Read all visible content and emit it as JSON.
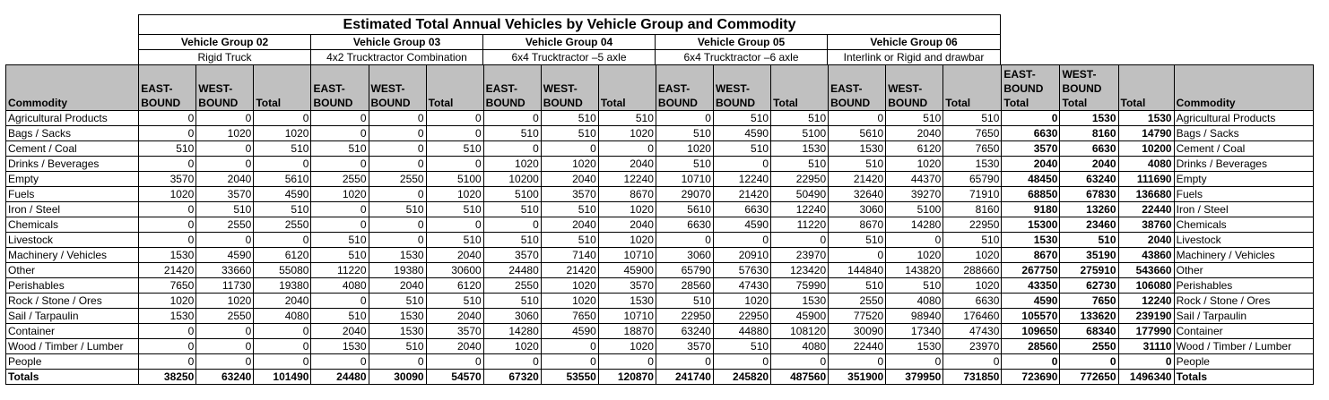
{
  "title": "Estimated Total Annual Vehicles by Vehicle Group and Commodity",
  "groups": [
    {
      "name": "Vehicle Group 02",
      "desc": "Rigid Truck"
    },
    {
      "name": "Vehicle Group 03",
      "desc": "4x2 Trucktractor Combination"
    },
    {
      "name": "Vehicle Group 04",
      "desc": "6x4 Trucktractor –5 axle"
    },
    {
      "name": "Vehicle Group 05",
      "desc": "6x4 Trucktractor –6 axle"
    },
    {
      "name": "Vehicle Group 06",
      "desc": "Interlink or Rigid and drawbar"
    }
  ],
  "headers": {
    "commodity": "Commodity",
    "east": "EAST-BOUND",
    "west": "WEST-BOUND",
    "total": "Total",
    "east_total": "EAST-BOUND Total",
    "west_total": "WEST-BOUND Total",
    "grand_total": "Total",
    "commodity_right": "Commodity"
  },
  "rows": [
    {
      "name": "Agricultural Products",
      "v": [
        0,
        0,
        0,
        0,
        0,
        0,
        0,
        510,
        510,
        0,
        510,
        510,
        0,
        510,
        510,
        0,
        1530,
        1530
      ]
    },
    {
      "name": "Bags / Sacks",
      "v": [
        0,
        1020,
        1020,
        0,
        0,
        0,
        510,
        510,
        1020,
        510,
        4590,
        5100,
        5610,
        2040,
        7650,
        6630,
        8160,
        14790
      ]
    },
    {
      "name": "Cement / Coal",
      "v": [
        510,
        0,
        510,
        510,
        0,
        510,
        0,
        0,
        0,
        1020,
        510,
        1530,
        1530,
        6120,
        7650,
        3570,
        6630,
        10200
      ]
    },
    {
      "name": "Drinks / Beverages",
      "v": [
        0,
        0,
        0,
        0,
        0,
        0,
        1020,
        1020,
        2040,
        510,
        0,
        510,
        510,
        1020,
        1530,
        2040,
        2040,
        4080
      ]
    },
    {
      "name": "Empty",
      "v": [
        3570,
        2040,
        5610,
        2550,
        2550,
        5100,
        10200,
        2040,
        12240,
        10710,
        12240,
        22950,
        21420,
        44370,
        65790,
        48450,
        63240,
        111690
      ]
    },
    {
      "name": "Fuels",
      "v": [
        1020,
        3570,
        4590,
        1020,
        0,
        1020,
        5100,
        3570,
        8670,
        29070,
        21420,
        50490,
        32640,
        39270,
        71910,
        68850,
        67830,
        136680
      ]
    },
    {
      "name": "Iron / Steel",
      "v": [
        0,
        510,
        510,
        0,
        510,
        510,
        510,
        510,
        1020,
        5610,
        6630,
        12240,
        3060,
        5100,
        8160,
        9180,
        13260,
        22440
      ]
    },
    {
      "name": "Chemicals",
      "v": [
        0,
        2550,
        2550,
        0,
        0,
        0,
        0,
        2040,
        2040,
        6630,
        4590,
        11220,
        8670,
        14280,
        22950,
        15300,
        23460,
        38760
      ]
    },
    {
      "name": "Livestock",
      "v": [
        0,
        0,
        0,
        510,
        0,
        510,
        510,
        510,
        1020,
        0,
        0,
        0,
        510,
        0,
        510,
        1530,
        510,
        2040
      ]
    },
    {
      "name": "Machinery / Vehicles",
      "v": [
        1530,
        4590,
        6120,
        510,
        1530,
        2040,
        3570,
        7140,
        10710,
        3060,
        20910,
        23970,
        0,
        1020,
        1020,
        8670,
        35190,
        43860
      ]
    },
    {
      "name": "Other",
      "v": [
        21420,
        33660,
        55080,
        11220,
        19380,
        30600,
        24480,
        21420,
        45900,
        65790,
        57630,
        123420,
        144840,
        143820,
        288660,
        267750,
        275910,
        543660
      ]
    },
    {
      "name": "Perishables",
      "v": [
        7650,
        11730,
        19380,
        4080,
        2040,
        6120,
        2550,
        1020,
        3570,
        28560,
        47430,
        75990,
        510,
        510,
        1020,
        43350,
        62730,
        106080
      ]
    },
    {
      "name": "Rock / Stone / Ores",
      "v": [
        1020,
        1020,
        2040,
        0,
        510,
        510,
        510,
        1020,
        1530,
        510,
        1020,
        1530,
        2550,
        4080,
        6630,
        4590,
        7650,
        12240
      ]
    },
    {
      "name": "Sail / Tarpaulin",
      "v": [
        1530,
        2550,
        4080,
        510,
        1530,
        2040,
        3060,
        7650,
        10710,
        22950,
        22950,
        45900,
        77520,
        98940,
        176460,
        105570,
        133620,
        239190
      ]
    },
    {
      "name": "Container",
      "v": [
        0,
        0,
        0,
        2040,
        1530,
        3570,
        14280,
        4590,
        18870,
        63240,
        44880,
        108120,
        30090,
        17340,
        47430,
        109650,
        68340,
        177990
      ]
    },
    {
      "name": "Wood / Timber / Lumber",
      "v": [
        0,
        0,
        0,
        1530,
        510,
        2040,
        1020,
        0,
        1020,
        3570,
        510,
        4080,
        22440,
        1530,
        23970,
        28560,
        2550,
        31110
      ]
    },
    {
      "name": "People",
      "v": [
        0,
        0,
        0,
        0,
        0,
        0,
        0,
        0,
        0,
        0,
        0,
        0,
        0,
        0,
        0,
        0,
        0,
        0
      ]
    }
  ],
  "totals": {
    "name": "Totals",
    "v": [
      38250,
      63240,
      101490,
      24480,
      30090,
      54570,
      67320,
      53550,
      120870,
      241740,
      245820,
      487560,
      351900,
      379950,
      731850,
      723690,
      772650,
      1496340
    ]
  }
}
